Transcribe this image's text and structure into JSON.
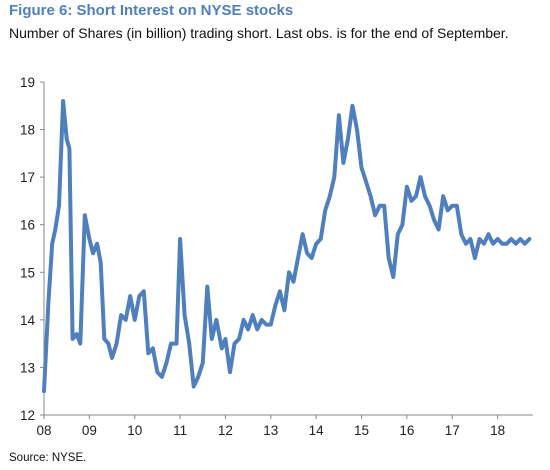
{
  "figure": {
    "title": "Figure 6: Short Interest on NYSE stocks",
    "subtitle": "Number of Shares (in billion) trading short. Last obs. is for the end of September.",
    "source": "Source:  NYSE."
  },
  "colors": {
    "title": "#4f7fbd",
    "line": "#4f7fbd",
    "axis": "#888888",
    "text": "#222222"
  },
  "chart_data": {
    "type": "line",
    "title": "Figure 6: Short Interest on NYSE stocks",
    "subtitle": "Number of Shares (in billion) trading short. Last obs. is for the end of September.",
    "xlabel": "",
    "ylabel": "",
    "xlim": [
      2008.0,
      2018.78
    ],
    "ylim": [
      12,
      19
    ],
    "x_ticks": [
      2008,
      2009,
      2010,
      2011,
      2012,
      2013,
      2014,
      2015,
      2016,
      2017,
      2018
    ],
    "x_tick_labels": [
      "08",
      "09",
      "10",
      "11",
      "12",
      "13",
      "14",
      "15",
      "16",
      "17",
      "18"
    ],
    "y_ticks": [
      12,
      13,
      14,
      15,
      16,
      17,
      18,
      19
    ],
    "grid": false,
    "legend": "none",
    "series": [
      {
        "x": [
          2008.0,
          2008.1,
          2008.18,
          2008.25,
          2008.33,
          2008.42,
          2008.5,
          2008.56,
          2008.63,
          2008.72,
          2008.8,
          2008.9,
          2009.0,
          2009.08,
          2009.17,
          2009.25,
          2009.33,
          2009.42,
          2009.5,
          2009.6,
          2009.7,
          2009.8,
          2009.9,
          2010.0,
          2010.1,
          2010.2,
          2010.3,
          2010.4,
          2010.5,
          2010.6,
          2010.7,
          2010.8,
          2010.92,
          2011.0,
          2011.1,
          2011.2,
          2011.3,
          2011.4,
          2011.5,
          2011.6,
          2011.7,
          2011.8,
          2011.92,
          2012.0,
          2012.1,
          2012.2,
          2012.3,
          2012.4,
          2012.5,
          2012.6,
          2012.7,
          2012.8,
          2012.9,
          2013.0,
          2013.1,
          2013.2,
          2013.3,
          2013.4,
          2013.5,
          2013.6,
          2013.7,
          2013.8,
          2013.9,
          2014.0,
          2014.1,
          2014.2,
          2014.3,
          2014.4,
          2014.5,
          2014.6,
          2014.7,
          2014.8,
          2014.9,
          2015.0,
          2015.1,
          2015.2,
          2015.3,
          2015.4,
          2015.5,
          2015.6,
          2015.7,
          2015.8,
          2015.9,
          2016.0,
          2016.1,
          2016.2,
          2016.3,
          2016.4,
          2016.5,
          2016.6,
          2016.7,
          2016.8,
          2016.9,
          2017.0,
          2017.1,
          2017.2,
          2017.3,
          2017.4,
          2017.5,
          2017.6,
          2017.7,
          2017.8,
          2017.9,
          2018.0,
          2018.1,
          2018.2,
          2018.3,
          2018.4,
          2018.5,
          2018.6,
          2018.7
        ],
        "y": [
          12.5,
          14.4,
          15.6,
          15.9,
          16.4,
          18.6,
          17.8,
          17.6,
          13.6,
          13.7,
          13.5,
          16.2,
          15.7,
          15.4,
          15.6,
          15.2,
          13.6,
          13.5,
          13.2,
          13.5,
          14.1,
          14.0,
          14.5,
          14.0,
          14.5,
          14.6,
          13.3,
          13.4,
          12.9,
          12.8,
          13.1,
          13.5,
          13.5,
          15.7,
          14.1,
          13.5,
          12.6,
          12.8,
          13.1,
          14.7,
          13.6,
          14.0,
          13.4,
          13.6,
          12.9,
          13.5,
          13.6,
          14.0,
          13.8,
          14.1,
          13.8,
          14.0,
          13.9,
          13.9,
          14.3,
          14.6,
          14.2,
          15.0,
          14.8,
          15.3,
          15.8,
          15.4,
          15.3,
          15.6,
          15.7,
          16.3,
          16.6,
          17.0,
          18.3,
          17.3,
          17.8,
          18.5,
          18.0,
          17.2,
          16.9,
          16.6,
          16.2,
          16.4,
          16.4,
          15.3,
          14.9,
          15.8,
          16.0,
          16.8,
          16.5,
          16.6,
          17.0,
          16.6,
          16.4,
          16.1,
          15.9,
          16.6,
          16.3,
          16.4,
          16.4,
          15.8,
          15.6,
          15.7,
          15.3,
          15.7,
          15.6,
          15.8,
          15.6,
          15.7,
          15.6,
          15.6,
          15.7,
          15.6,
          15.7,
          15.6,
          15.7
        ]
      }
    ]
  }
}
